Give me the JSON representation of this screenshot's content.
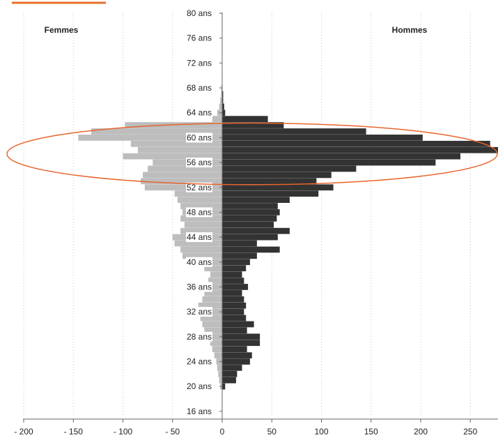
{
  "chart_data": {
    "type": "bar",
    "orientation": "horizontal",
    "layout": "population-pyramid",
    "series": [
      {
        "name": "Femmes",
        "color": "#bdbdbd",
        "ages": [
          20,
          21,
          22,
          23,
          24,
          25,
          26,
          27,
          28,
          29,
          30,
          31,
          32,
          33,
          34,
          35,
          36,
          37,
          38,
          39,
          40,
          41,
          42,
          43,
          44,
          45,
          46,
          47,
          48,
          49,
          50,
          51,
          52,
          53,
          54,
          55,
          56,
          57,
          58,
          59,
          60,
          61,
          62,
          63,
          64,
          65,
          66,
          67,
          68
        ],
        "values": [
          -2,
          -3,
          -4,
          -5,
          -6,
          -8,
          -10,
          -12,
          -15,
          -18,
          -20,
          -22,
          -25,
          -24,
          -20,
          -18,
          -16,
          -14,
          -12,
          -18,
          -25,
          -40,
          -42,
          -48,
          -50,
          -42,
          -38,
          -42,
          -40,
          -42,
          -45,
          -48,
          -78,
          -82,
          -80,
          -75,
          -70,
          -100,
          -85,
          -92,
          -145,
          -132,
          -98,
          -10,
          -5,
          -3,
          -2,
          -1,
          -1
        ]
      },
      {
        "name": "Hommes",
        "color": "#333333",
        "ages": [
          20,
          21,
          22,
          23,
          24,
          25,
          26,
          27,
          28,
          29,
          30,
          31,
          32,
          33,
          34,
          35,
          36,
          37,
          38,
          39,
          40,
          41,
          42,
          43,
          44,
          45,
          46,
          47,
          48,
          49,
          50,
          51,
          52,
          53,
          54,
          55,
          56,
          57,
          58,
          59,
          60,
          61,
          62,
          63,
          64,
          65,
          66,
          67,
          68
        ],
        "values": [
          3,
          14,
          15,
          20,
          28,
          30,
          25,
          38,
          38,
          25,
          32,
          24,
          22,
          24,
          22,
          20,
          26,
          22,
          20,
          24,
          28,
          35,
          58,
          35,
          56,
          68,
          52,
          55,
          58,
          56,
          68,
          97,
          112,
          95,
          110,
          135,
          215,
          240,
          278,
          270,
          202,
          145,
          62,
          46,
          3,
          2,
          1,
          1,
          0
        ]
      }
    ],
    "y_ticks": [
      "16 ans",
      "20 ans",
      "24 ans",
      "28 ans",
      "32 ans",
      "36 ans",
      "40 ans",
      "44 ans",
      "48 ans",
      "52 ans",
      "56 ans",
      "60 ans",
      "64 ans",
      "68 ans",
      "72 ans",
      "76 ans",
      "80 ans"
    ],
    "x_ticks": [
      "- 200",
      "- 150",
      "- 100",
      "- 50",
      "0",
      "50",
      "100",
      "150",
      "200",
      "250"
    ],
    "x_tick_values": [
      -200,
      -150,
      -100,
      -50,
      0,
      50,
      100,
      150,
      200,
      250
    ],
    "xlim": [
      -200,
      275
    ],
    "ylim": [
      15.5,
      80.5
    ],
    "grid": "vertical-dotted",
    "highlight": {
      "shape": "ellipse",
      "age_range": [
        53,
        62
      ],
      "color": "#e8642c"
    },
    "decoration_color": "#e8702a",
    "axis_color": "#666666"
  }
}
